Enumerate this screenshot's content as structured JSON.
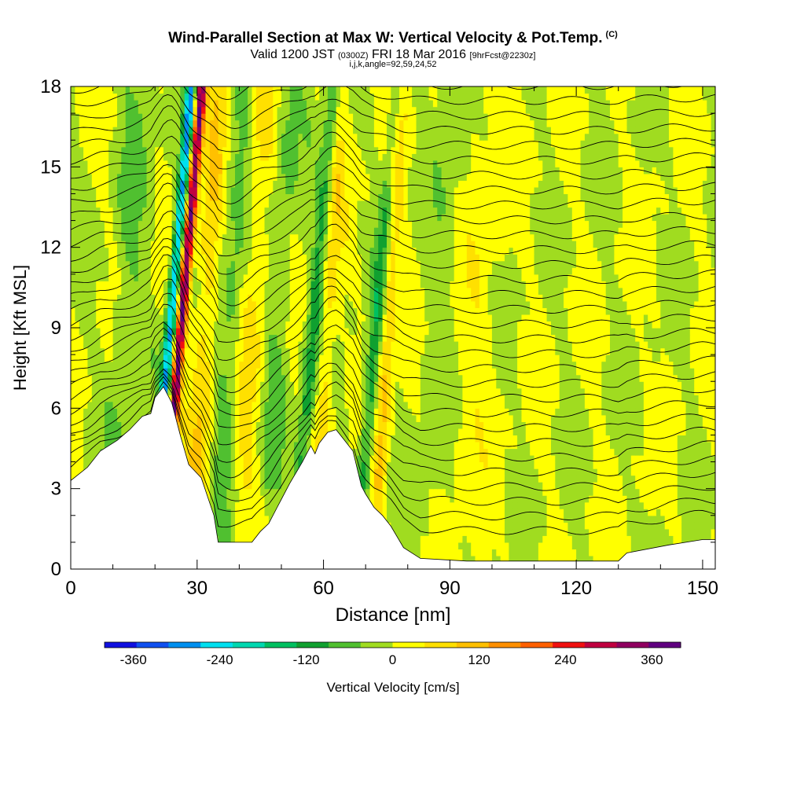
{
  "title": {
    "main": "Wind-Parallel Section at Max W: Vertical Velocity & Pot.Temp.",
    "copyright": "(C)",
    "valid_prefix": "Valid 1200 JST",
    "valid_z": "(0300Z)",
    "valid_date": "FRI 18 Mar 2016",
    "forecast": "[9hrFcst@2230z]",
    "indices": "i,j,k,angle=92,59,24,52"
  },
  "chart_data": {
    "type": "heatmap",
    "xlabel": "Distance [nm]",
    "ylabel": "Height [Kft MSL]",
    "xlim": [
      0,
      153
    ],
    "ylim": [
      0,
      18
    ],
    "xticks": [
      "0",
      "30",
      "60",
      "90",
      "120",
      "150"
    ],
    "yticks": [
      "0",
      "3",
      "6",
      "9",
      "12",
      "15",
      "18"
    ],
    "colorbar": {
      "label": "Vertical Velocity [cm/s]",
      "ticks": [
        "-360",
        "-240",
        "-120",
        "0",
        "120",
        "240",
        "360"
      ],
      "range": [
        -400,
        400
      ],
      "colors": [
        "#1010e0",
        "#1050f0",
        "#0090f0",
        "#00e0f0",
        "#00d8b0",
        "#00c060",
        "#10a030",
        "#50c030",
        "#a0dc20",
        "#ffff00",
        "#ffe000",
        "#ffc000",
        "#ff9000",
        "#ff6000",
        "#f01010",
        "#c00040",
        "#900060",
        "#600080"
      ]
    },
    "terrain_kft": [
      [
        0,
        3.3
      ],
      [
        4,
        3.8
      ],
      [
        7,
        4.4
      ],
      [
        11,
        4.8
      ],
      [
        14,
        5.2
      ],
      [
        17,
        5.7
      ],
      [
        19,
        5.8
      ],
      [
        20,
        6.4
      ],
      [
        22,
        6.8
      ],
      [
        24,
        6.2
      ],
      [
        26,
        5.0
      ],
      [
        28,
        3.9
      ],
      [
        31,
        3.4
      ],
      [
        34,
        2.0
      ],
      [
        35,
        1.0
      ],
      [
        43,
        1.0
      ],
      [
        45,
        1.4
      ],
      [
        47,
        1.7
      ],
      [
        49,
        2.3
      ],
      [
        52,
        3.2
      ],
      [
        55,
        4.0
      ],
      [
        57,
        4.6
      ],
      [
        58,
        4.3
      ],
      [
        59,
        4.7
      ],
      [
        61,
        5.1
      ],
      [
        63,
        5.2
      ],
      [
        65,
        4.8
      ],
      [
        67,
        4.4
      ],
      [
        69,
        3.1
      ],
      [
        70,
        2.8
      ],
      [
        72,
        2.3
      ],
      [
        74,
        2.0
      ],
      [
        76,
        1.6
      ],
      [
        79,
        0.8
      ],
      [
        83,
        0.4
      ],
      [
        94,
        0.3
      ],
      [
        106,
        0.3
      ],
      [
        116,
        0.3
      ],
      [
        130,
        0.3
      ],
      [
        132,
        0.6
      ],
      [
        142,
        0.9
      ],
      [
        150,
        1.1
      ],
      [
        153,
        1.1
      ]
    ],
    "updrafts": [
      {
        "x": 24.5,
        "w": 360,
        "width": 1.2
      },
      {
        "x": 31,
        "w": 80,
        "width": 2.5
      },
      {
        "x": 42,
        "w": 60,
        "width": 3
      },
      {
        "x": 60,
        "w": 70,
        "width": 2
      },
      {
        "x": 74,
        "w": 100,
        "width": 2
      },
      {
        "x": 95,
        "w": 40,
        "width": 4
      }
    ],
    "downdrafts": [
      {
        "x": 22,
        "w": -280,
        "width": 1.2
      },
      {
        "x": 56,
        "w": -110,
        "width": 1.8
      },
      {
        "x": 71,
        "w": -130,
        "width": 1.8
      },
      {
        "x": 12,
        "w": -45,
        "width": 4
      },
      {
        "x": 37,
        "w": -60,
        "width": 3
      },
      {
        "x": 48,
        "w": -50,
        "width": 3
      },
      {
        "x": 86,
        "w": -40,
        "width": 4
      }
    ],
    "theta_line_count": 32
  }
}
